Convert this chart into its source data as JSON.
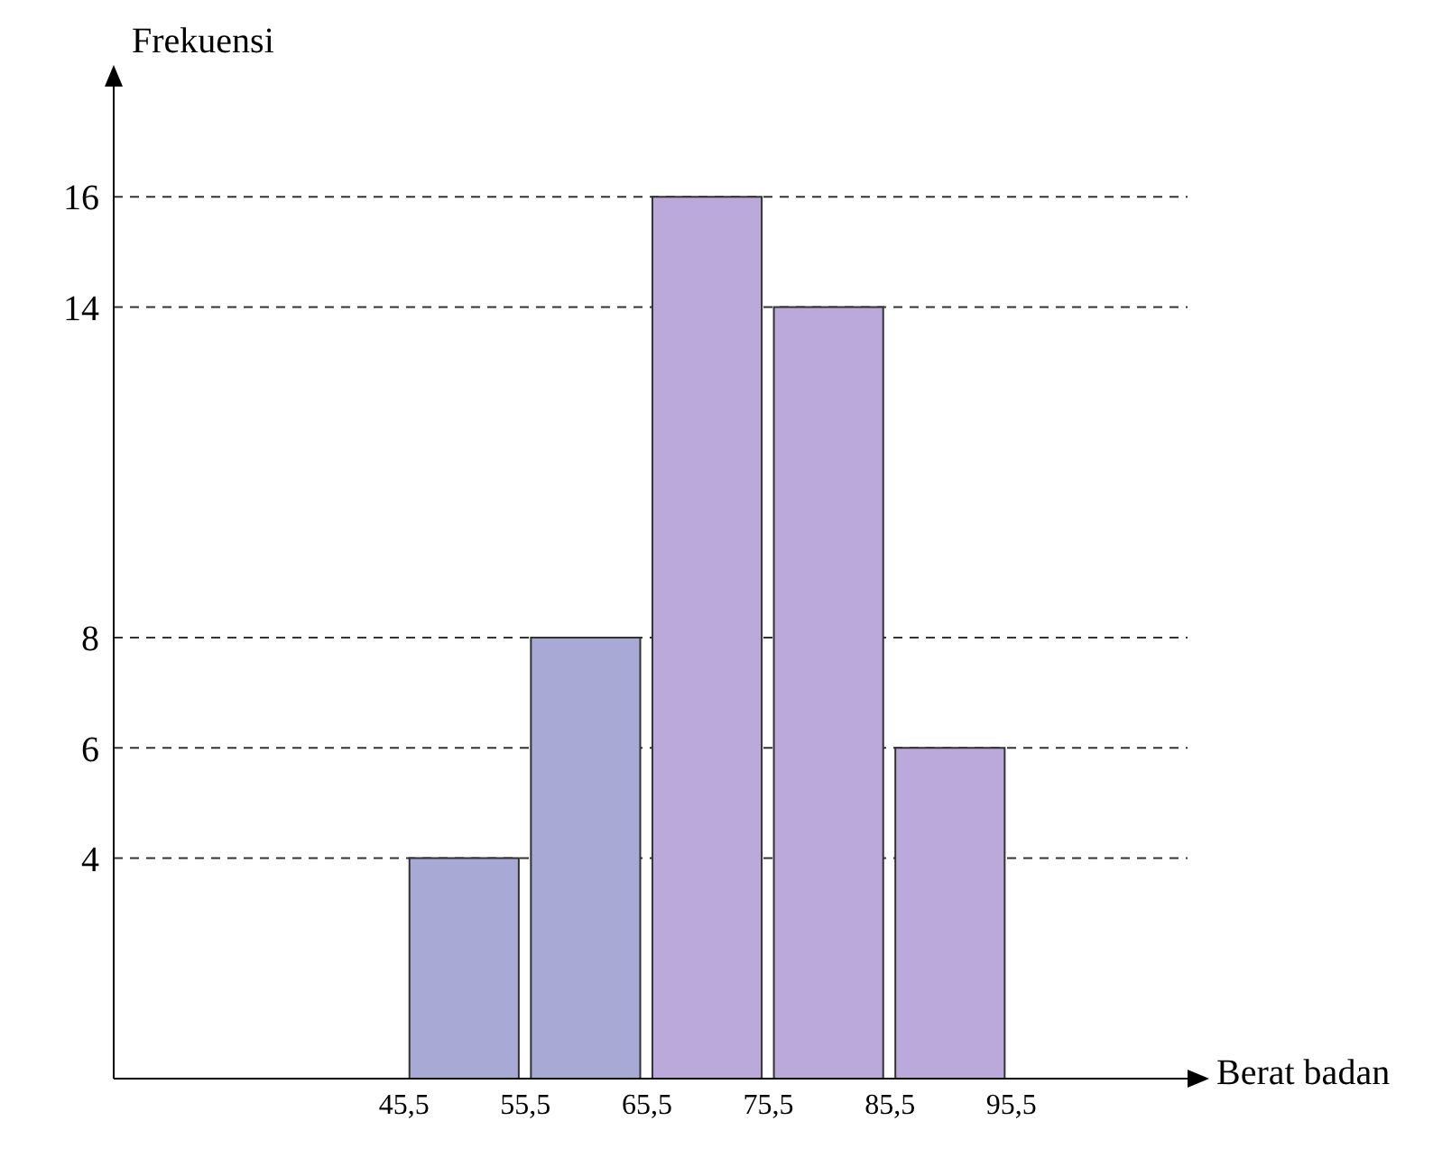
{
  "chart_data": {
    "type": "histogram",
    "xlabel": "Berat badan",
    "ylabel": "Frekuensi",
    "bins": [
      45.5,
      55.5,
      65.5,
      75.5,
      85.5,
      95.5
    ],
    "values": [
      4,
      8,
      16,
      14,
      6
    ],
    "colors": [
      "#a9a9d6",
      "#a9a9d6",
      "#bba9dc",
      "#bba9dc",
      "#bba9dc"
    ],
    "xlim": [
      21.6,
      110
    ],
    "xticks": [
      {
        "value": 45.5,
        "label": "45,5"
      },
      {
        "value": 55.5,
        "label": "55,5"
      },
      {
        "value": 65.5,
        "label": "65,5"
      },
      {
        "value": 75.5,
        "label": "75,5"
      },
      {
        "value": 85.5,
        "label": "85,5"
      },
      {
        "value": 95.5,
        "label": "95,5"
      }
    ],
    "ylim": [
      0,
      18
    ],
    "yticks": [
      4,
      6,
      8,
      14,
      16
    ],
    "grid": "y",
    "legend": false
  }
}
